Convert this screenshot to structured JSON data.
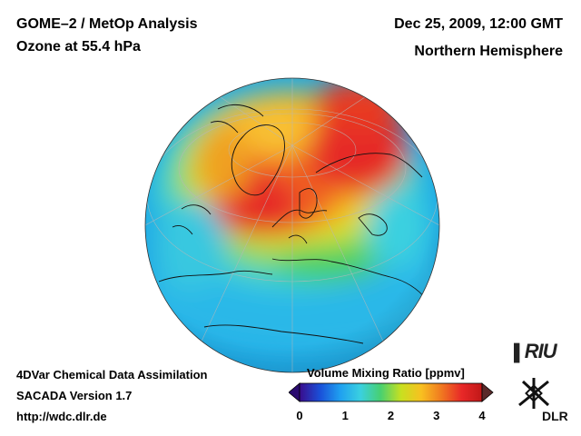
{
  "header": {
    "title_line1": "GOME–2 / MetOp Analysis",
    "title_line2": "Ozone at 55.4 hPa",
    "date": "Dec 25, 2009, 12:00 GMT",
    "region": "Northern Hemisphere"
  },
  "footer": {
    "line1": "4DVar Chemical Data Assimilation",
    "line2": "SACADA Version 1.7",
    "url": "http://wdc.dlr.de"
  },
  "colorbar": {
    "title": "Volume Mixing Ratio [ppmv]",
    "min": 0,
    "max": 4,
    "ticks": [
      "0",
      "1",
      "2",
      "3",
      "4"
    ],
    "colors": [
      "#3a0c8c",
      "#1a4fd8",
      "#1fa0f0",
      "#3ad0e0",
      "#48d070",
      "#c8e020",
      "#f8c020",
      "#f07820",
      "#e82828",
      "#c01818"
    ]
  },
  "logos": {
    "riu": "RIU",
    "dlr": "DLR"
  },
  "map": {
    "projection": "orthographic",
    "hemisphere": "Northern Hemisphere",
    "variable": "ozone"
  }
}
